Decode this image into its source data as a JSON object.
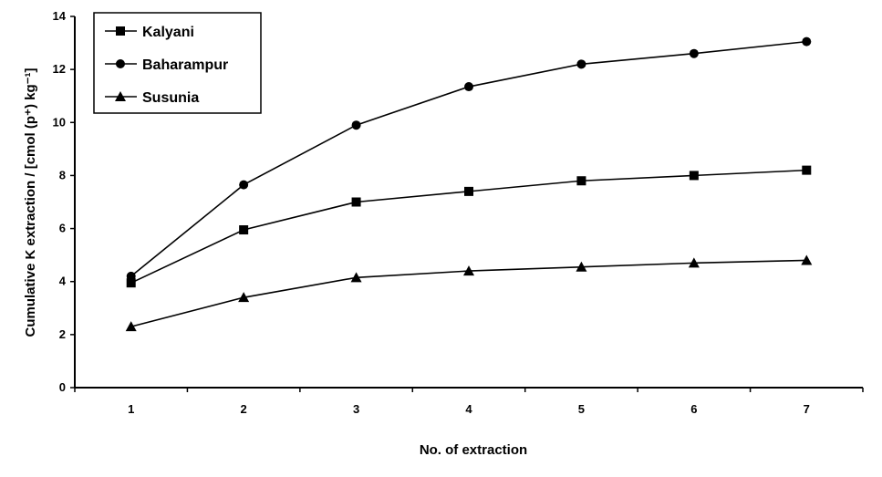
{
  "chart_data": {
    "type": "line",
    "xlabel": "No. of extraction",
    "ylabel": "Cumulative K extraction / [cmol (p⁺) kg⁻¹]",
    "x": [
      1,
      2,
      3,
      4,
      5,
      6,
      7
    ],
    "xlim": [
      0.5,
      7.5
    ],
    "ylim": [
      0,
      14
    ],
    "yticks": [
      0,
      2,
      4,
      6,
      8,
      10,
      12,
      14
    ],
    "grid": false,
    "legend_position": "top-left",
    "series": [
      {
        "name": "Kalyani",
        "marker": "square",
        "values": [
          3.95,
          5.95,
          7.0,
          7.4,
          7.8,
          8.0,
          8.2
        ]
      },
      {
        "name": "Baharampur",
        "marker": "circle",
        "values": [
          4.2,
          7.65,
          9.9,
          11.35,
          12.2,
          12.6,
          13.05
        ]
      },
      {
        "name": "Susunia",
        "marker": "triangle",
        "values": [
          2.3,
          3.4,
          4.15,
          4.4,
          4.55,
          4.7,
          4.8
        ]
      }
    ],
    "colors": {
      "line": "#000000",
      "marker": "#000000",
      "background": "#ffffff"
    }
  }
}
